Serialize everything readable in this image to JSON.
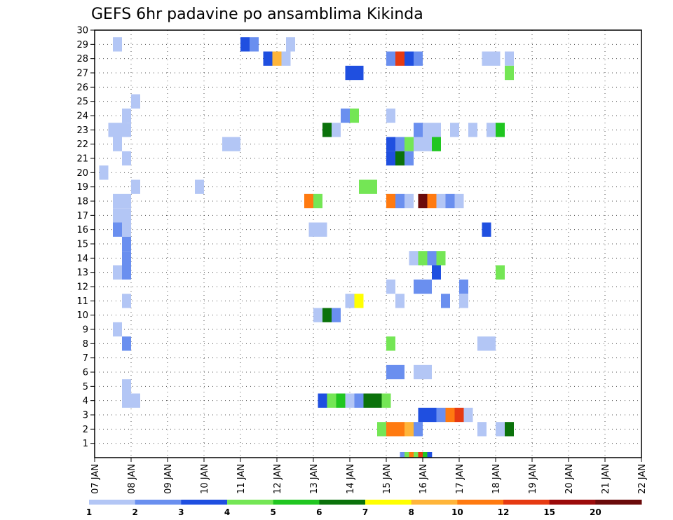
{
  "chart_data": {
    "type": "heatmap",
    "title": "GEFS 6hr padavine po ansamblima Kikinda",
    "xlabel": "",
    "ylabel": "",
    "x_ticks": [
      "07 JAN",
      "08 JAN",
      "09 JAN",
      "10 JAN",
      "11 JAN",
      "12 JAN",
      "13 JAN",
      "14 JAN",
      "15 JAN",
      "16 JAN",
      "17 JAN",
      "18 JAN",
      "19 JAN",
      "20 JAN",
      "21 JAN",
      "22 JAN"
    ],
    "y_ticks": [
      1,
      2,
      3,
      4,
      5,
      6,
      7,
      8,
      9,
      10,
      11,
      12,
      13,
      14,
      15,
      16,
      17,
      18,
      19,
      20,
      21,
      22,
      23,
      24,
      25,
      26,
      27,
      28,
      29,
      30
    ],
    "xlim": [
      0,
      60
    ],
    "ylim": [
      0,
      30
    ],
    "grid": true,
    "colorbar": {
      "labels": [
        "1",
        "2",
        "3",
        "4",
        "5",
        "6",
        "7",
        "8",
        "10",
        "12",
        "15",
        "20"
      ],
      "colors": [
        "#b3c6f5",
        "#6a8fef",
        "#1f4fe0",
        "#74e655",
        "#20c620",
        "#0b720b",
        "#ffff00",
        "#ffb53a",
        "#ff7a10",
        "#e63a12",
        "#9c0a0a",
        "#6b0a0a"
      ]
    },
    "cells": [
      [
        2.5,
        29,
        1
      ],
      [
        2.5,
        22,
        1
      ],
      [
        3.5,
        24,
        1
      ],
      [
        3,
        23,
        1
      ],
      [
        2,
        23,
        1
      ],
      [
        3.5,
        23,
        1
      ],
      [
        3.5,
        21,
        1
      ],
      [
        1,
        20,
        1
      ],
      [
        4.5,
        25,
        1
      ],
      [
        4.5,
        19,
        1
      ],
      [
        2.5,
        18,
        1
      ],
      [
        3.5,
        18,
        1
      ],
      [
        2.5,
        17,
        1
      ],
      [
        3.5,
        17,
        1
      ],
      [
        3.5,
        16,
        1
      ],
      [
        2.5,
        16,
        2
      ],
      [
        3.5,
        15,
        2
      ],
      [
        3.5,
        14,
        2
      ],
      [
        3.5,
        13,
        2
      ],
      [
        2.5,
        13,
        1
      ],
      [
        3.5,
        11,
        1
      ],
      [
        2.5,
        9,
        1
      ],
      [
        3.5,
        8,
        2
      ],
      [
        3.5,
        5,
        1
      ],
      [
        3.5,
        4,
        1
      ],
      [
        4.5,
        4,
        1
      ],
      [
        11.5,
        19,
        1
      ],
      [
        14.5,
        22,
        1
      ],
      [
        15.5,
        22,
        1
      ],
      [
        16.5,
        29,
        3
      ],
      [
        17.5,
        29,
        2
      ],
      [
        19,
        28,
        3
      ],
      [
        20,
        28,
        8
      ],
      [
        21,
        28,
        1
      ],
      [
        21.5,
        29,
        1
      ],
      [
        23.5,
        18,
        9
      ],
      [
        24.5,
        18,
        4
      ],
      [
        24,
        16,
        1
      ],
      [
        25,
        16,
        1
      ],
      [
        24.5,
        10,
        1
      ],
      [
        25.5,
        10,
        6
      ],
      [
        26.5,
        10,
        2
      ],
      [
        25.5,
        23,
        6
      ],
      [
        26.5,
        23,
        1
      ],
      [
        27.5,
        24,
        2
      ],
      [
        28.5,
        24,
        4
      ],
      [
        28,
        27,
        3
      ],
      [
        29,
        27,
        3
      ],
      [
        28,
        11,
        1
      ],
      [
        29,
        11,
        7
      ],
      [
        29.5,
        19,
        4
      ],
      [
        30.5,
        19,
        4
      ],
      [
        25,
        4,
        3
      ],
      [
        26,
        4,
        4
      ],
      [
        27,
        4,
        5
      ],
      [
        28,
        4,
        1
      ],
      [
        29,
        4,
        2
      ],
      [
        30,
        4,
        6
      ],
      [
        31,
        4,
        6
      ],
      [
        32,
        4,
        4
      ],
      [
        31.5,
        2,
        4
      ],
      [
        32.5,
        2,
        9
      ],
      [
        33.5,
        2,
        9
      ],
      [
        34.5,
        2,
        8
      ],
      [
        35.5,
        2,
        2
      ],
      [
        32.5,
        28,
        2
      ],
      [
        33.5,
        28,
        10
      ],
      [
        34.5,
        28,
        3
      ],
      [
        35.5,
        28,
        2
      ],
      [
        32.5,
        24,
        1
      ],
      [
        32.5,
        22,
        3
      ],
      [
        33.5,
        22,
        2
      ],
      [
        34.5,
        22,
        4
      ],
      [
        35.5,
        22,
        1
      ],
      [
        36.5,
        22,
        1
      ],
      [
        37.5,
        22,
        5
      ],
      [
        32.5,
        21,
        3
      ],
      [
        33.5,
        21,
        6
      ],
      [
        34.5,
        21,
        2
      ],
      [
        35.5,
        23,
        2
      ],
      [
        36.5,
        23,
        1
      ],
      [
        37.5,
        23,
        1
      ],
      [
        32.5,
        18,
        9
      ],
      [
        33.5,
        18,
        2
      ],
      [
        34.5,
        18,
        1
      ],
      [
        36,
        18,
        12
      ],
      [
        37,
        18,
        9
      ],
      [
        38,
        18,
        1
      ],
      [
        39,
        18,
        2
      ],
      [
        40,
        18,
        1
      ],
      [
        35,
        14,
        1
      ],
      [
        36,
        14,
        4
      ],
      [
        37,
        14,
        2
      ],
      [
        38,
        14,
        4
      ],
      [
        37.5,
        13,
        3
      ],
      [
        35.5,
        12,
        2
      ],
      [
        36.5,
        12,
        2
      ],
      [
        32.5,
        12,
        1
      ],
      [
        33.5,
        11,
        1
      ],
      [
        38.5,
        11,
        2
      ],
      [
        40.5,
        12,
        2
      ],
      [
        40.5,
        11,
        1
      ],
      [
        32.5,
        8,
        4
      ],
      [
        32.5,
        6,
        2
      ],
      [
        33.5,
        6,
        2
      ],
      [
        35.5,
        6,
        1
      ],
      [
        36.5,
        6,
        1
      ],
      [
        36,
        3,
        3
      ],
      [
        37,
        3,
        3
      ],
      [
        38,
        3,
        2
      ],
      [
        39,
        3,
        9
      ],
      [
        40,
        3,
        10
      ],
      [
        41,
        3,
        1
      ],
      [
        39.5,
        23,
        1
      ],
      [
        41.5,
        23,
        1
      ],
      [
        43.5,
        23,
        1
      ],
      [
        44.5,
        23,
        5
      ],
      [
        43,
        16,
        3
      ],
      [
        44.5,
        13,
        4
      ],
      [
        43,
        28,
        1
      ],
      [
        44,
        28,
        1
      ],
      [
        45.5,
        28,
        1
      ],
      [
        45.5,
        27,
        4
      ],
      [
        42.5,
        8,
        1
      ],
      [
        43.5,
        8,
        1
      ],
      [
        42.5,
        2,
        1
      ],
      [
        44.5,
        2,
        1
      ],
      [
        45.5,
        2,
        6
      ]
    ],
    "strip": {
      "y": 0,
      "x_start": 33.5,
      "colors_idx": [
        2,
        4,
        9,
        4,
        10,
        5,
        3
      ]
    }
  }
}
